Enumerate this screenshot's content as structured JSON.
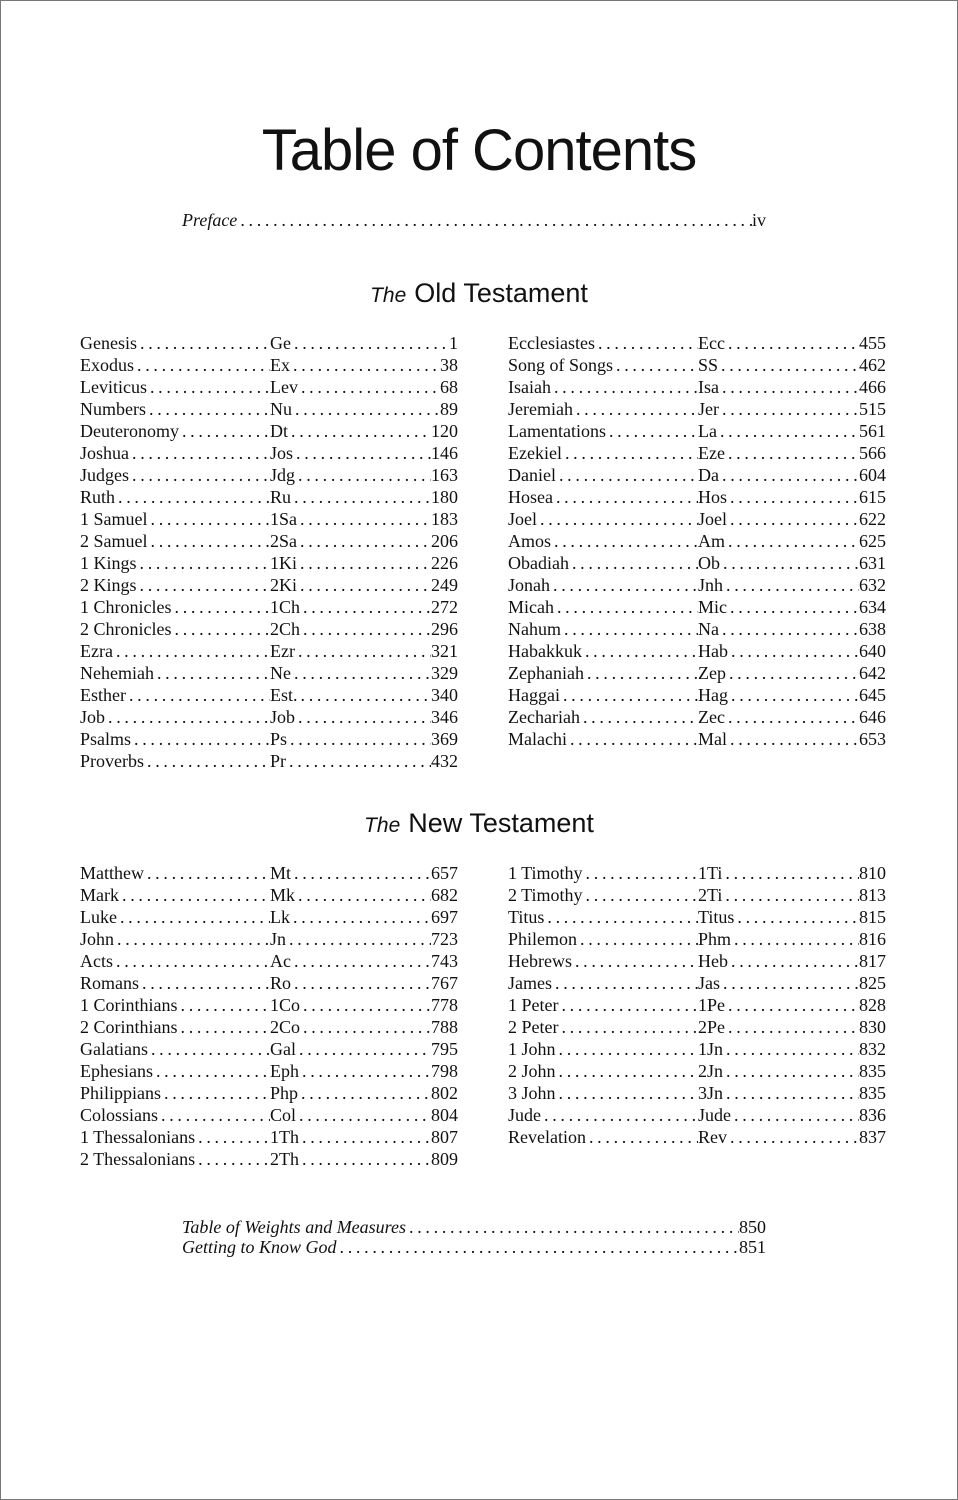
{
  "title": "Table of Contents",
  "preface": {
    "label": "Preface",
    "page": "iv"
  },
  "old_testament": {
    "prefix": "The",
    "heading": "Old Testament",
    "left": [
      [
        "Genesis",
        "Ge",
        "1"
      ],
      [
        "Exodus",
        "Ex",
        "38"
      ],
      [
        "Leviticus",
        "Lev",
        "68"
      ],
      [
        "Numbers",
        "Nu",
        "89"
      ],
      [
        "Deuteronomy",
        "Dt",
        "120"
      ],
      [
        "Joshua",
        "Jos",
        "146"
      ],
      [
        "Judges",
        "Jdg",
        "163"
      ],
      [
        "Ruth",
        "Ru",
        "180"
      ],
      [
        "1 Samuel",
        "1Sa",
        "183"
      ],
      [
        "2 Samuel",
        "2Sa",
        "206"
      ],
      [
        "1 Kings",
        "1Ki",
        "226"
      ],
      [
        "2 Kings",
        "2Ki",
        "249"
      ],
      [
        "1 Chronicles",
        "1Ch",
        "272"
      ],
      [
        "2 Chronicles",
        "2Ch",
        "296"
      ],
      [
        "Ezra",
        "Ezr",
        "321"
      ],
      [
        "Nehemiah",
        "Ne",
        "329"
      ],
      [
        "Esther",
        "Est.",
        "340"
      ],
      [
        "Job",
        "Job",
        "346"
      ],
      [
        "Psalms",
        "Ps",
        "369"
      ],
      [
        "Proverbs",
        "Pr",
        "432"
      ]
    ],
    "right": [
      [
        "Ecclesiastes",
        "Ecc",
        "455"
      ],
      [
        "Song of Songs",
        "SS",
        "462"
      ],
      [
        "Isaiah",
        "Isa",
        "466"
      ],
      [
        "Jeremiah",
        "Jer",
        "515"
      ],
      [
        "Lamentations",
        "La",
        "561"
      ],
      [
        "Ezekiel",
        "Eze",
        "566"
      ],
      [
        "Daniel",
        "Da",
        "604"
      ],
      [
        "Hosea",
        "Hos",
        "615"
      ],
      [
        "Joel",
        "Joel",
        "622"
      ],
      [
        "Amos",
        "Am",
        "625"
      ],
      [
        "Obadiah",
        "Ob",
        "631"
      ],
      [
        "Jonah",
        "Jnh",
        "632"
      ],
      [
        "Micah",
        "Mic",
        "634"
      ],
      [
        "Nahum",
        "Na",
        "638"
      ],
      [
        "Habakkuk",
        "Hab",
        "640"
      ],
      [
        "Zephaniah",
        "Zep",
        "642"
      ],
      [
        "Haggai",
        "Hag",
        "645"
      ],
      [
        "Zechariah",
        "Zec",
        "646"
      ],
      [
        "Malachi",
        "Mal",
        "653"
      ]
    ]
  },
  "new_testament": {
    "prefix": "The",
    "heading": "New Testament",
    "left": [
      [
        "Matthew",
        "Mt",
        "657"
      ],
      [
        "Mark",
        "Mk",
        "682"
      ],
      [
        "Luke",
        "Lk",
        "697"
      ],
      [
        "John",
        "Jn",
        "723"
      ],
      [
        "Acts",
        "Ac",
        "743"
      ],
      [
        "Romans",
        "Ro",
        "767"
      ],
      [
        "1 Corinthians",
        "1Co",
        "778"
      ],
      [
        "2 Corinthians",
        "2Co",
        "788"
      ],
      [
        "Galatians",
        "Gal",
        "795"
      ],
      [
        "Ephesians",
        "Eph",
        "798"
      ],
      [
        "Philippians",
        "Php",
        "802"
      ],
      [
        "Colossians",
        "Col",
        "804"
      ],
      [
        "1 Thessalonians",
        "1Th",
        "807"
      ],
      [
        "2 Thessalonians",
        "2Th",
        "809"
      ]
    ],
    "right": [
      [
        "1 Timothy",
        "1Ti",
        "810"
      ],
      [
        "2 Timothy",
        "2Ti",
        "813"
      ],
      [
        "Titus",
        "Titus",
        "815"
      ],
      [
        "Philemon",
        "Phm",
        "816"
      ],
      [
        "Hebrews",
        "Heb",
        "817"
      ],
      [
        "James",
        "Jas",
        "825"
      ],
      [
        "1 Peter",
        "1Pe",
        "828"
      ],
      [
        "2 Peter",
        "2Pe",
        "830"
      ],
      [
        "1 John",
        "1Jn",
        "832"
      ],
      [
        "2 John",
        "2Jn",
        "835"
      ],
      [
        "3 John",
        "3Jn",
        "835"
      ],
      [
        "Jude",
        "Jude",
        "836"
      ],
      [
        "Revelation",
        "Rev",
        "837"
      ]
    ]
  },
  "back_matter": [
    {
      "label": "Table of Weights and Measures",
      "page": "850"
    },
    {
      "label": "Getting to Know God",
      "page": "851"
    }
  ]
}
